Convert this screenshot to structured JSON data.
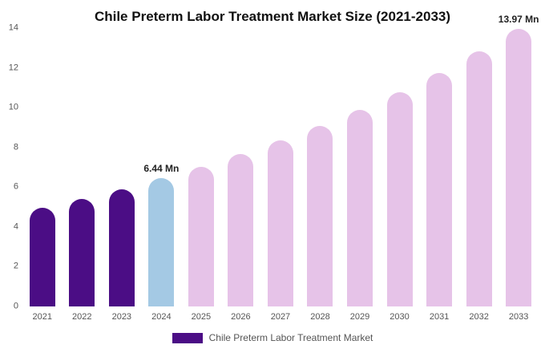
{
  "title": "Chile Preterm Labor Treatment Market Size (2021-2033)",
  "chart_data": {
    "type": "bar",
    "title": "Chile Preterm Labor Treatment Market Size (2021-2033)",
    "categories": [
      "2021",
      "2022",
      "2023",
      "2024",
      "2025",
      "2026",
      "2027",
      "2028",
      "2029",
      "2030",
      "2031",
      "2032",
      "2033"
    ],
    "values": [
      4.98,
      5.42,
      5.91,
      6.44,
      7.02,
      7.65,
      8.34,
      9.09,
      9.9,
      10.79,
      11.76,
      12.82,
      13.97
    ],
    "unit": "Mn",
    "xlabel": "",
    "ylabel": "",
    "ylim": [
      0,
      14
    ],
    "yticks": [
      0,
      2,
      4,
      6,
      8,
      10,
      12,
      14
    ],
    "grid": false,
    "legend_position": "bottom",
    "bar_colors": [
      "#4b0d85",
      "#4b0d85",
      "#4b0d85",
      "#a4c9e4",
      "#e6c3e8",
      "#e6c3e8",
      "#e6c3e8",
      "#e6c3e8",
      "#e6c3e8",
      "#e6c3e8",
      "#e6c3e8",
      "#e6c3e8",
      "#e6c3e8"
    ],
    "annotations": [
      {
        "category": "2024",
        "text": "6.44 Mn"
      },
      {
        "category": "2033",
        "text": "13.97 Mn"
      }
    ]
  },
  "legend": {
    "label": "Chile Preterm Labor Treatment Market",
    "swatch_color": "#4b0d85"
  }
}
